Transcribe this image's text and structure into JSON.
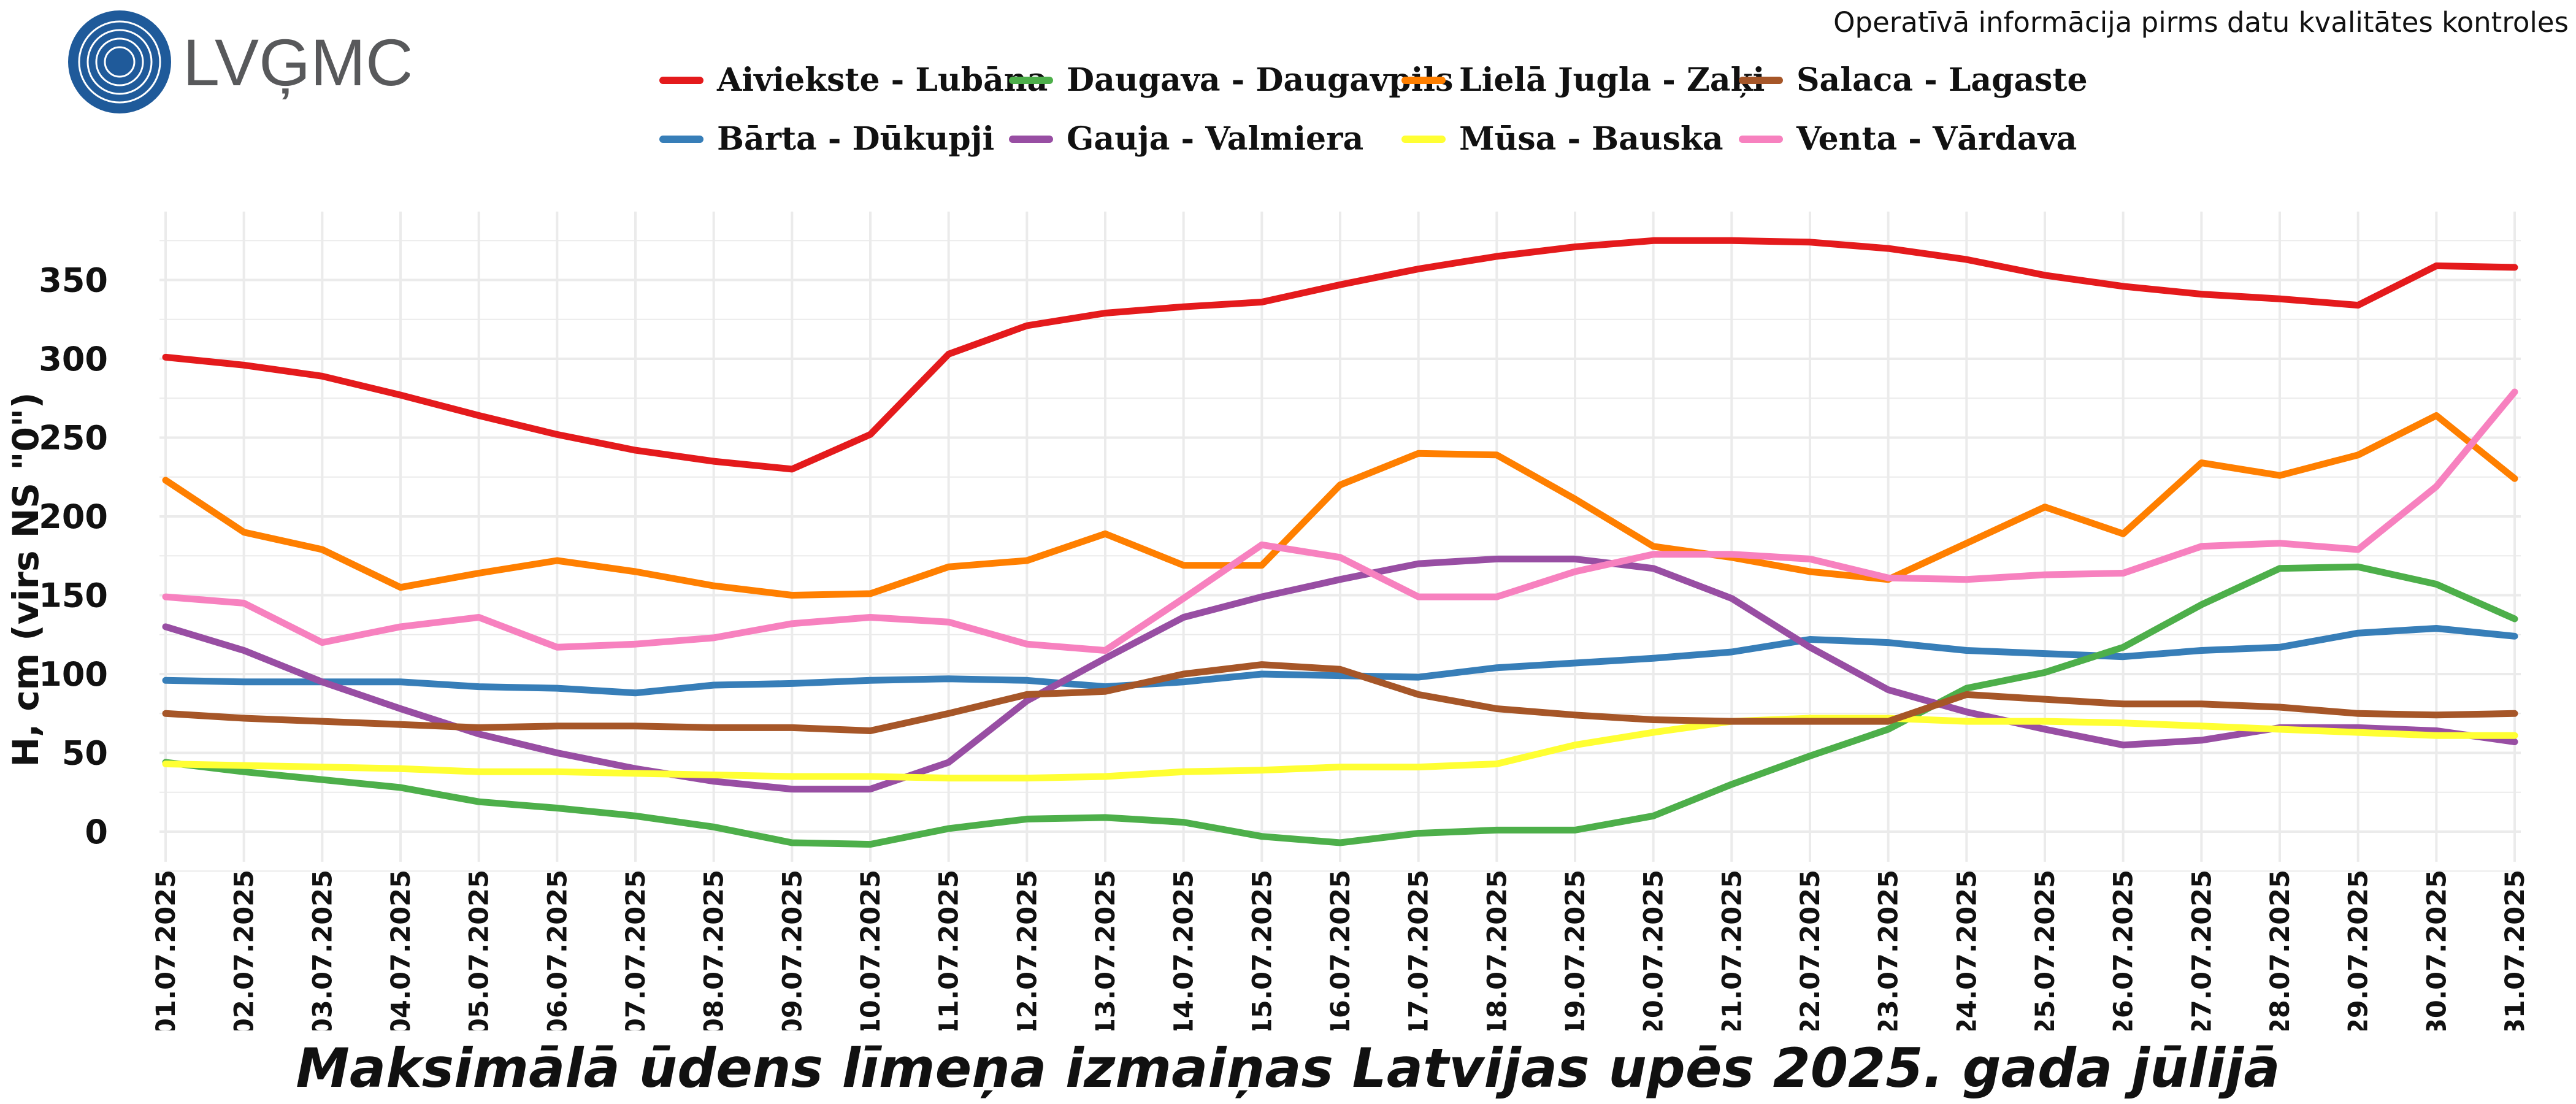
{
  "header": {
    "logo_text": "LVĢMC",
    "note": "Operatīvā informācija pirms datu kvalitātes kontroles"
  },
  "colors": {
    "logo_blue": "#1f5a9a",
    "logo_text": "#58595b",
    "grid": "#ebebeb"
  },
  "legend": {
    "items": [
      {
        "label": "Aiviekste - Lubāna",
        "color": "#e41a1c"
      },
      {
        "label": "Bārta - Dūkupji",
        "color": "#377eb8"
      },
      {
        "label": "Daugava - Daugavpils",
        "color": "#4daf4a"
      },
      {
        "label": "Gauja - Valmiera",
        "color": "#984ea3"
      },
      {
        "label": "Lielā Jugla - Zaķi",
        "color": "#ff7f00"
      },
      {
        "label": "Mūsa - Bauska",
        "color": "#ffff33"
      },
      {
        "label": "Salaca - Lagaste",
        "color": "#a65628"
      },
      {
        "label": "Venta - Vārdava",
        "color": "#f781bf"
      }
    ]
  },
  "chart_data": {
    "type": "line",
    "title": "Maksimālā ūdens līmeņa izmaiņas Latvijas upēs 2025. gada jūlijā",
    "xlabel": "",
    "ylabel": "H, cm (virs NS \"0\")",
    "ylim": [
      -20,
      390
    ],
    "yticks": [
      0,
      50,
      100,
      150,
      200,
      250,
      300,
      350
    ],
    "grid": true,
    "legend_position": "top",
    "x": [
      "01.07.2025",
      "02.07.2025",
      "03.07.2025",
      "04.07.2025",
      "05.07.2025",
      "06.07.2025",
      "07.07.2025",
      "08.07.2025",
      "09.07.2025",
      "10.07.2025",
      "11.07.2025",
      "12.07.2025",
      "13.07.2025",
      "14.07.2025",
      "15.07.2025",
      "16.07.2025",
      "17.07.2025",
      "18.07.2025",
      "19.07.2025",
      "20.07.2025",
      "21.07.2025",
      "22.07.2025",
      "23.07.2025",
      "24.07.2025",
      "25.07.2025",
      "26.07.2025",
      "27.07.2025",
      "28.07.2025",
      "29.07.2025",
      "30.07.2025",
      "31.07.2025"
    ],
    "series": [
      {
        "name": "Aiviekste - Lubāna",
        "color": "#e41a1c",
        "values": [
          301,
          296,
          289,
          277,
          264,
          252,
          242,
          235,
          230,
          252,
          303,
          321,
          329,
          333,
          336,
          347,
          357,
          365,
          371,
          375,
          375,
          374,
          370,
          363,
          353,
          346,
          341,
          338,
          334,
          359,
          358
        ]
      },
      {
        "name": "Bārta - Dūkupji",
        "color": "#377eb8",
        "values": [
          96,
          95,
          95,
          95,
          92,
          91,
          88,
          93,
          94,
          96,
          97,
          96,
          92,
          95,
          100,
          99,
          98,
          104,
          107,
          110,
          114,
          122,
          120,
          115,
          113,
          111,
          115,
          117,
          126,
          129,
          124
        ]
      },
      {
        "name": "Daugava - Daugavpils",
        "color": "#4daf4a",
        "values": [
          44,
          38,
          33,
          28,
          19,
          15,
          10,
          3,
          -7,
          -8,
          2,
          8,
          9,
          6,
          -3,
          -7,
          -1,
          1,
          1,
          10,
          30,
          48,
          65,
          91,
          101,
          117,
          144,
          167,
          168,
          157,
          135
        ]
      },
      {
        "name": "Gauja - Valmiera",
        "color": "#984ea3",
        "values": [
          130,
          115,
          95,
          78,
          62,
          50,
          40,
          32,
          27,
          27,
          44,
          83,
          110,
          136,
          149,
          160,
          170,
          173,
          173,
          167,
          148,
          117,
          90,
          76,
          65,
          55,
          58,
          66,
          66,
          64,
          57
        ]
      },
      {
        "name": "Lielā Jugla - Zaķi",
        "color": "#ff7f00",
        "values": [
          223,
          190,
          179,
          155,
          164,
          172,
          165,
          156,
          150,
          151,
          168,
          172,
          189,
          169,
          169,
          220,
          240,
          239,
          211,
          181,
          174,
          165,
          160,
          183,
          206,
          189,
          234,
          226,
          239,
          264,
          224
        ]
      },
      {
        "name": "Mūsa - Bauska",
        "color": "#ffff33",
        "values": [
          43,
          42,
          41,
          40,
          38,
          38,
          37,
          36,
          35,
          35,
          34,
          34,
          35,
          38,
          39,
          41,
          41,
          43,
          55,
          63,
          70,
          72,
          72,
          70,
          70,
          69,
          67,
          65,
          63,
          61,
          61
        ]
      },
      {
        "name": "Salaca - Lagaste",
        "color": "#a65628",
        "values": [
          75,
          72,
          70,
          68,
          66,
          67,
          67,
          66,
          66,
          64,
          75,
          87,
          89,
          100,
          106,
          103,
          87,
          78,
          74,
          71,
          70,
          70,
          70,
          87,
          84,
          81,
          81,
          79,
          75,
          74,
          75
        ]
      },
      {
        "name": "Venta - Vārdava",
        "color": "#f781bf",
        "values": [
          149,
          145,
          120,
          130,
          136,
          117,
          119,
          123,
          132,
          136,
          133,
          119,
          115,
          148,
          182,
          174,
          149,
          149,
          165,
          176,
          176,
          173,
          161,
          160,
          163,
          164,
          181,
          183,
          179,
          219,
          279
        ]
      }
    ]
  }
}
